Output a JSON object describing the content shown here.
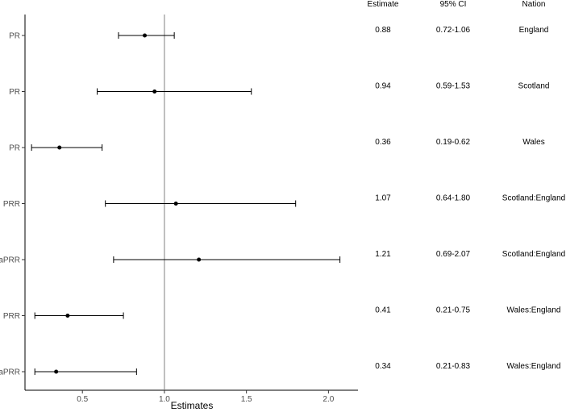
{
  "chart_data": {
    "type": "forest",
    "xlabel": "Estimates",
    "ylabel": "",
    "xlim": [
      0.15,
      2.18
    ],
    "x_ticks": [
      0.5,
      1.0,
      1.5,
      2.0
    ],
    "x_tick_labels": [
      "0.5",
      "1.0",
      "1.5",
      "2.0"
    ],
    "reference_line": 1.0,
    "grid": false,
    "table_headers": {
      "estimate": "Estimate",
      "ci": "95% CI",
      "nation": "Nation"
    },
    "rows": [
      {
        "label": "PR",
        "estimate": 0.88,
        "lower": 0.72,
        "upper": 1.06,
        "estimate_text": "0.88",
        "ci_text": "0.72-1.06",
        "nation": "England"
      },
      {
        "label": "PR",
        "estimate": 0.94,
        "lower": 0.59,
        "upper": 1.53,
        "estimate_text": "0.94",
        "ci_text": "0.59-1.53",
        "nation": "Scotland"
      },
      {
        "label": "PR",
        "estimate": 0.36,
        "lower": 0.19,
        "upper": 0.62,
        "estimate_text": "0.36",
        "ci_text": "0.19-0.62",
        "nation": "Wales"
      },
      {
        "label": "PRR",
        "estimate": 1.07,
        "lower": 0.64,
        "upper": 1.8,
        "estimate_text": "1.07",
        "ci_text": "0.64-1.80",
        "nation": "Scotland:England"
      },
      {
        "label": "aPRR",
        "estimate": 1.21,
        "lower": 0.69,
        "upper": 2.07,
        "estimate_text": "1.21",
        "ci_text": "0.69-2.07",
        "nation": "Scotland:England"
      },
      {
        "label": "PRR",
        "estimate": 0.41,
        "lower": 0.21,
        "upper": 0.75,
        "estimate_text": "0.41",
        "ci_text": "0.21-0.75",
        "nation": "Wales:England"
      },
      {
        "label": "aPRR",
        "estimate": 0.34,
        "lower": 0.21,
        "upper": 0.83,
        "estimate_text": "0.34",
        "ci_text": "0.21-0.83",
        "nation": "Wales:England"
      }
    ]
  }
}
